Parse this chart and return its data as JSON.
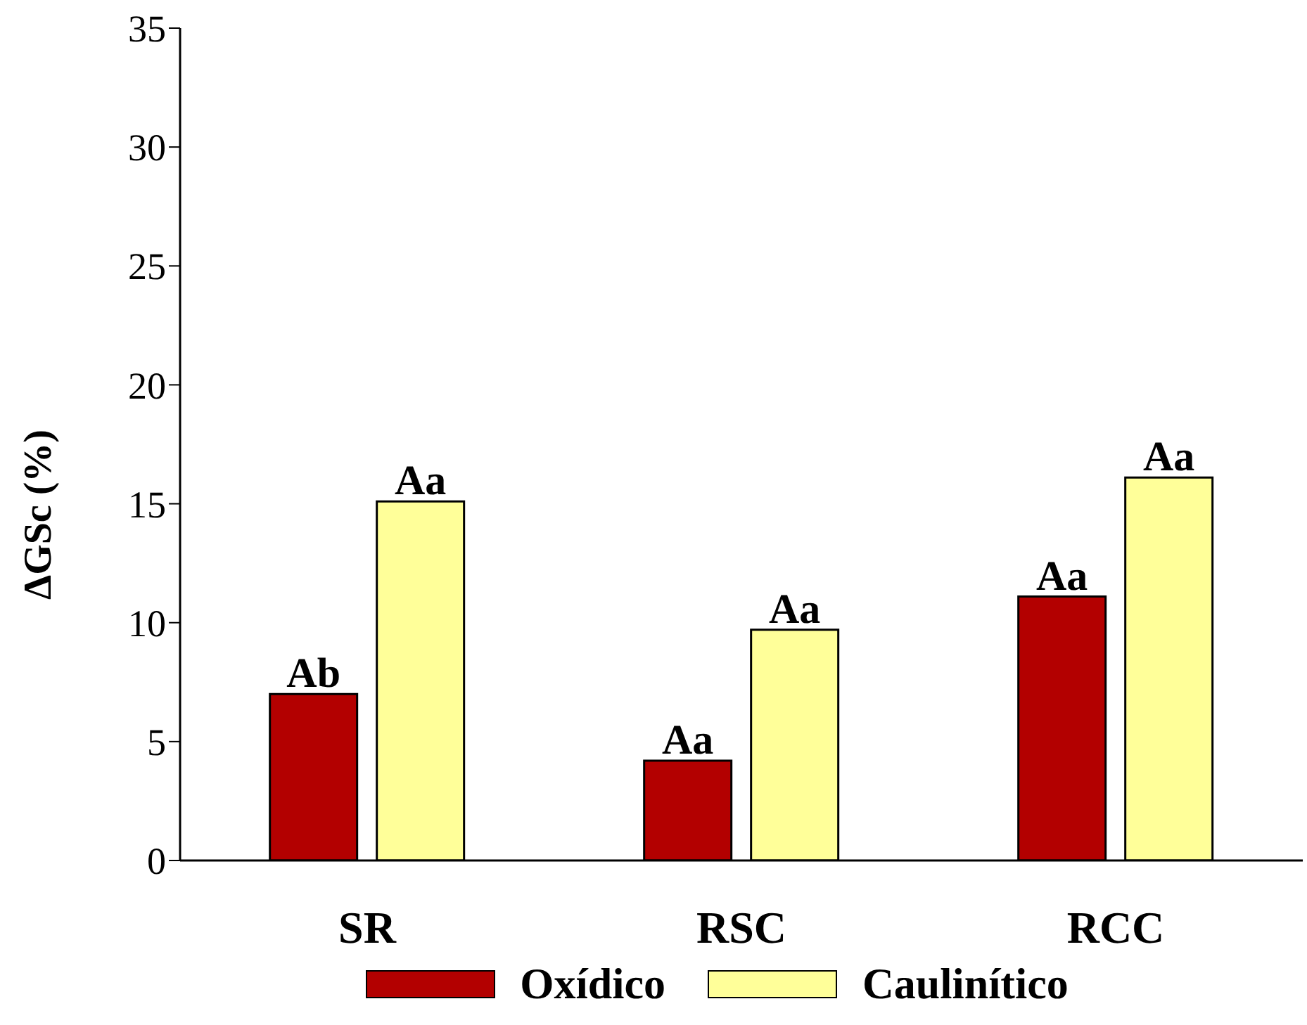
{
  "chart_data": {
    "type": "bar",
    "ylabel": "ΔGSc (%)",
    "categories": [
      "SR",
      "RSC",
      "RCC"
    ],
    "series": [
      {
        "name": "Oxídico",
        "color": "#b30000",
        "values": [
          7.0,
          4.2,
          11.1
        ],
        "value_labels": [
          "Ab",
          "Aa",
          "Aa"
        ]
      },
      {
        "name": "Caulinítico",
        "color": "#ffff99",
        "values": [
          15.1,
          9.7,
          16.1
        ],
        "value_labels": [
          "Aa",
          "Aa",
          "Aa"
        ]
      }
    ],
    "ylim": [
      0,
      35
    ],
    "yticks": [
      0,
      5,
      10,
      15,
      20,
      25,
      30,
      35
    ],
    "grid": false,
    "legend": "bottom"
  }
}
